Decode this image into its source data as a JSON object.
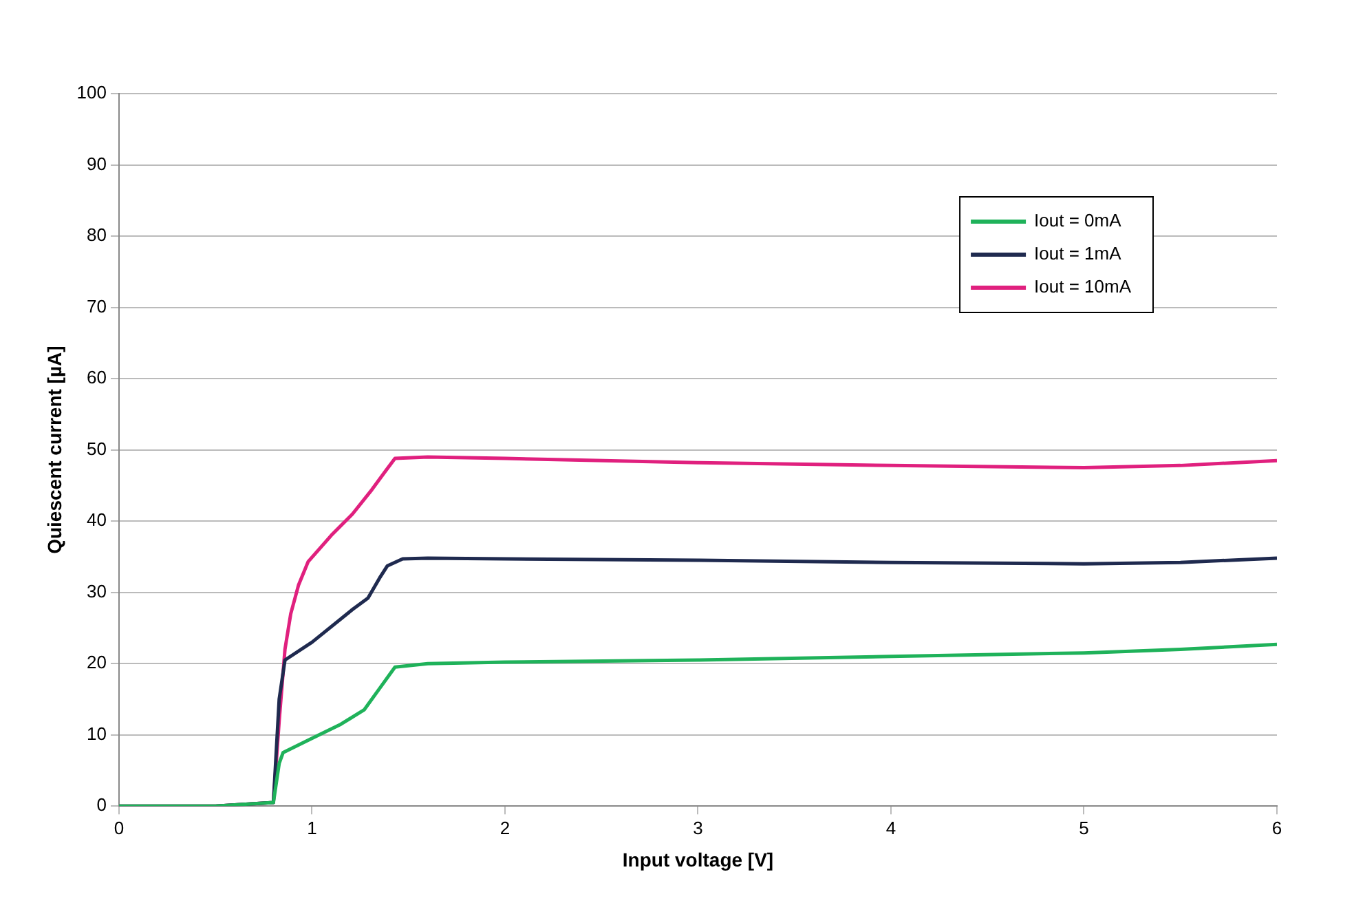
{
  "chart_data": {
    "type": "line",
    "xlabel": "Input voltage [V]",
    "ylabel": "Quiescent current [µA]",
    "xlim": [
      0,
      6
    ],
    "xticks": [
      0,
      1,
      2,
      3,
      4,
      5,
      6
    ],
    "ylim": [
      0,
      100
    ],
    "yticks": [
      0,
      10,
      20,
      30,
      40,
      50,
      60,
      70,
      80,
      90,
      100
    ],
    "grid": "y",
    "legend": "top right",
    "marker": "none",
    "line_style": "solid",
    "series": [
      {
        "name": "Iout = 0mA",
        "color": "#1fb25a",
        "x": [
          0,
          0.5,
          0.8,
          0.83,
          0.85,
          1.0,
          1.15,
          1.27,
          1.35,
          1.43,
          1.6,
          2,
          3,
          4,
          5,
          5.5,
          6
        ],
        "values": [
          0,
          0,
          0.5,
          6,
          7.5,
          9.5,
          11.5,
          13.5,
          16.5,
          19.5,
          20,
          20.2,
          20.5,
          21,
          21.5,
          22,
          22.7
        ]
      },
      {
        "name": "Iout = 1mA",
        "color": "#1f2a4f",
        "x": [
          0,
          0.5,
          0.8,
          0.83,
          0.86,
          1.0,
          1.21,
          1.29,
          1.35,
          1.39,
          1.47,
          1.6,
          2,
          3,
          4,
          5,
          5.5,
          6
        ],
        "values": [
          0,
          0,
          0.5,
          15,
          20.5,
          23,
          27.6,
          29.2,
          32,
          33.7,
          34.7,
          34.8,
          34.7,
          34.5,
          34.2,
          34,
          34.2,
          34.8
        ]
      },
      {
        "name": "Iout = 10mA",
        "color": "#e0207e",
        "x": [
          0,
          0.5,
          0.8,
          0.83,
          0.86,
          0.89,
          0.93,
          0.98,
          1.1,
          1.21,
          1.31,
          1.38,
          1.43,
          1.6,
          2,
          3,
          4,
          5,
          5.5,
          6
        ],
        "values": [
          0,
          0,
          0.5,
          12,
          22,
          27,
          31,
          34.3,
          38,
          41,
          44.4,
          47,
          48.8,
          49,
          48.8,
          48.2,
          47.8,
          47.5,
          47.8,
          48.5
        ]
      }
    ]
  }
}
